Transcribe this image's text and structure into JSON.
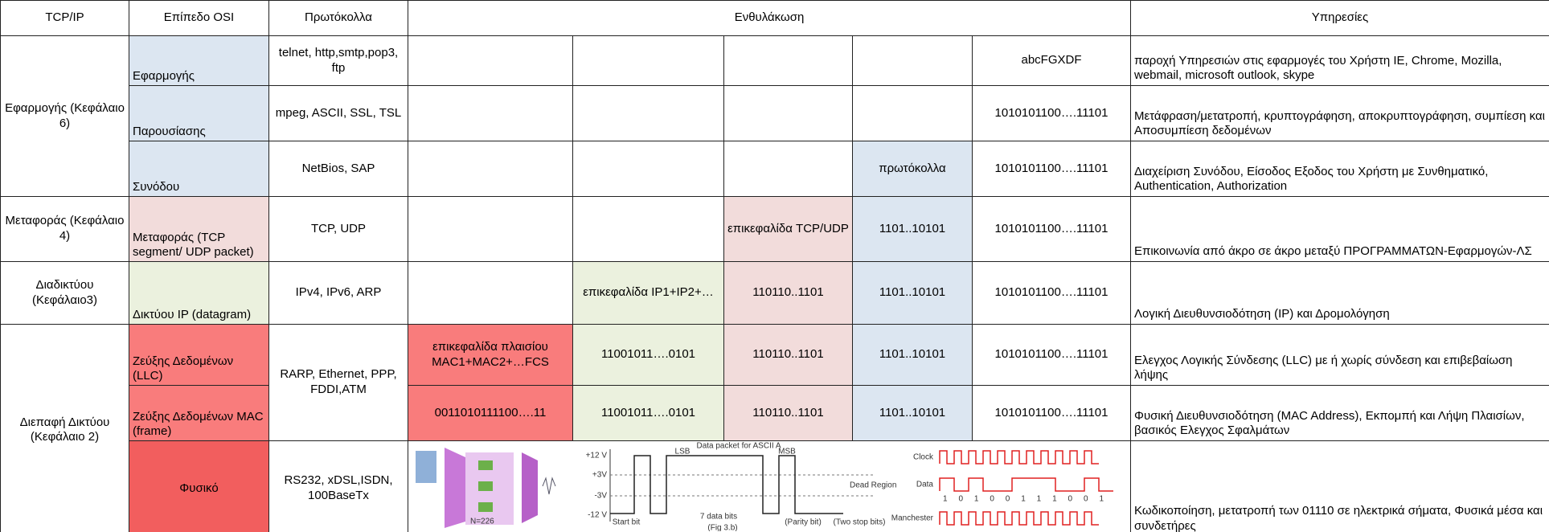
{
  "table": {
    "header": [
      "TCP/IP",
      "Επίπεδο OSI",
      "Πρωτόκολλα",
      "Ενθυλάκωση",
      "Υπηρεσίες"
    ],
    "rows": [
      {
        "tcpip": "Εφαρμογής (Κεφάλαιο 6)",
        "osi": "Εφαρμογής",
        "protocols": "telnet, http,smtp,pop3, ftp",
        "encapsulation": [
          "abcFGXDF"
        ],
        "services": "παροχή Υπηρεσιών στις εφαρμογές του Χρήστη IE, Chrome, Mozilla, webmail, microsoft outlook,  skype"
      },
      {
        "osi": "Παρουσίασης",
        "protocols": "mpeg, ASCII, SSL, TSL",
        "encapsulation": [
          "1010101100….11101"
        ],
        "services": "Μετάφραση/μετατροπή, κρυπτογράφηση, αποκρυπτογράφηση, συμπίεση και Αποσυμπίεση δεδομένων"
      },
      {
        "osi": "Συνόδου",
        "protocols": "NetBios, SAP",
        "encapsulation": [
          "πρωτόκολλα",
          "1010101100….11101"
        ],
        "services": "Διαχείριση Συνόδου, Είσοδος Εξοδος του Χρήστη με Συνθηματικό, Authentication, Authorization"
      },
      {
        "tcpip": "Μεταφοράς (Κεφάλαιο 4)",
        "osi": "Μεταφοράς (TCP segment/ UDP packet)",
        "protocols": "TCP, UDP",
        "encapsulation": [
          "επικεφαλίδα TCP/UDP",
          "1101..10101",
          "1010101100….11101"
        ],
        "services": "Επικοινωνία από άκρο σε άκρο μεταξύ ΠΡΟΓΡΑΜΜΑΤΩΝ-Εφαρμογών-ΛΣ"
      },
      {
        "tcpip": "Διαδικτύου (Κεφάλαιο3)",
        "osi": "Δικτύου  IP (datagram)",
        "protocols": "IPv4, IPv6, ARP",
        "encapsulation": [
          "επικεφαλίδα IP1+IP2+…",
          "110110..1101",
          "1101..10101",
          "1010101100….11101"
        ],
        "services": "Λογική Διευθυνσιοδότηση (IP) και Δρομολόγηση"
      },
      {
        "tcpip": "Διεπαφή Δικτύου (Κεφάλαιο 2)",
        "osi": "Ζεύξης Δεδομένων (LLC)",
        "protocols": "RARP, Ethernet, PPP, FDDI,ATM",
        "encapsulation": [
          "επικεφαλίδα πλαισίου MAC1+MAC2+…FCS",
          "11001011….0101",
          "110110..1101",
          "1101..10101",
          "1010101100….11101"
        ],
        "services": "Ελεγχος Λογικής Σύνδεσης (LLC) με ή χωρίς σύνδεση και επιβεβαίωση λήψης"
      },
      {
        "osi": "Ζεύξης Δεδομένων MAC (frame)",
        "encapsulation": [
          "0011010111100….11",
          "11001011….0101",
          "110110..1101",
          "1101..10101",
          "1010101100….11101"
        ],
        "services": "Φυσική Διευθυνσιοδότηση (MAC Address), Εκπομπή και Λήψη Πλαισίων, βασικός Ελεγχος Σφαλμάτων"
      },
      {
        "osi": "Φυσικό",
        "protocols": "RS232, xDSL,ISDN, 100BaseTx",
        "services": "Κωδικοποίηση, μετατροπή των 01110 σε ηλεκτρικά σήματα, Φυσικά μέσα και συνδετήρες"
      }
    ],
    "physical_figures": {
      "block_label": "N=226",
      "rs232": {
        "title": "Data packet for ASCII A",
        "lsb": "LSB",
        "msb": "MSB",
        "levels": [
          "+12 V",
          "+3V",
          "-3V",
          "-12 V"
        ],
        "dead_region": "Dead Region",
        "start": "Start bit",
        "data_bits": "7 data bits",
        "parity": "(Parity bit)",
        "stop": "(Two stop bits)",
        "caption": "(Fig 3.b)"
      },
      "manchester": {
        "clock": "Clock",
        "data": "Data",
        "manchester": "Manchester",
        "bits": "1 0 1 0 0 1 1 1 0 0 1"
      }
    }
  }
}
